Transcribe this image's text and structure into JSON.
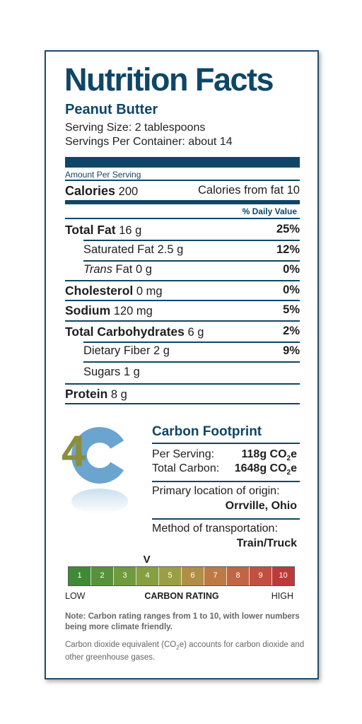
{
  "nutrition": {
    "title": "Nutrition Facts",
    "product": "Peanut Butter",
    "serving_size": "Serving Size: 2 tablespoons",
    "servings_per_container": "Servings Per Container: about 14",
    "amount_per_serving": "Amount Per Serving",
    "calories_label": "Calories",
    "calories_value": "200",
    "calories_from_fat": "Calories from fat 10",
    "daily_value_header": "% Daily Value",
    "rows": [
      {
        "label": "Total Fat",
        "amount": "16 g",
        "pct": "25%"
      },
      {
        "label": "Saturated Fat",
        "amount": "2.5 g",
        "pct": "12%"
      },
      {
        "label": "Trans",
        "label_rest": "Fat",
        "amount": "0 g",
        "pct": "0%"
      },
      {
        "label": "Cholesterol",
        "amount": "0 mg",
        "pct": "0%"
      },
      {
        "label": "Sodium",
        "amount": "120 mg",
        "pct": "5%"
      },
      {
        "label": "Total Carbohydrates",
        "amount": "6 g",
        "pct": "2%"
      },
      {
        "label": "Dietary Fiber",
        "amount": "2 g",
        "pct": "9%"
      },
      {
        "label": "Sugars",
        "amount": "1 g",
        "pct": ""
      },
      {
        "label": "Protein",
        "amount": "8 g",
        "pct": ""
      }
    ]
  },
  "carbon": {
    "logo_number": "4",
    "title": "Carbon Footprint",
    "per_serving_label": "Per Serving:",
    "per_serving_value": "118g CO",
    "total_label": "Total Carbon:",
    "total_value": "1648g CO",
    "co2_sub": "2",
    "co2_suffix": "e",
    "origin_label": "Primary location of origin:",
    "origin_value": "Orrville, Ohio",
    "transport_label": "Method of transportation:",
    "transport_value": "Train/Truck",
    "marker": "V",
    "rating": 4,
    "scale": [
      "1",
      "2",
      "3",
      "4",
      "5",
      "6",
      "7",
      "8",
      "9",
      "10"
    ],
    "scale_colors": [
      "#3f8a34",
      "#57923a",
      "#6f9a3e",
      "#879f41",
      "#9c9e44",
      "#b08e45",
      "#bd7a46",
      "#c26544",
      "#c25040",
      "#bd3a3a"
    ],
    "low": "LOW",
    "rating_label": "CARBON RATING",
    "high": "HIGH",
    "note": "Note: Carbon rating ranges from 1 to 10, with lower numbers being more climate friendly.",
    "footnote_a": "Carbon dioxide equivalent (CO",
    "footnote_sub": "2",
    "footnote_b": "e) accounts for carbon dioxide and other greenhouse gases."
  }
}
